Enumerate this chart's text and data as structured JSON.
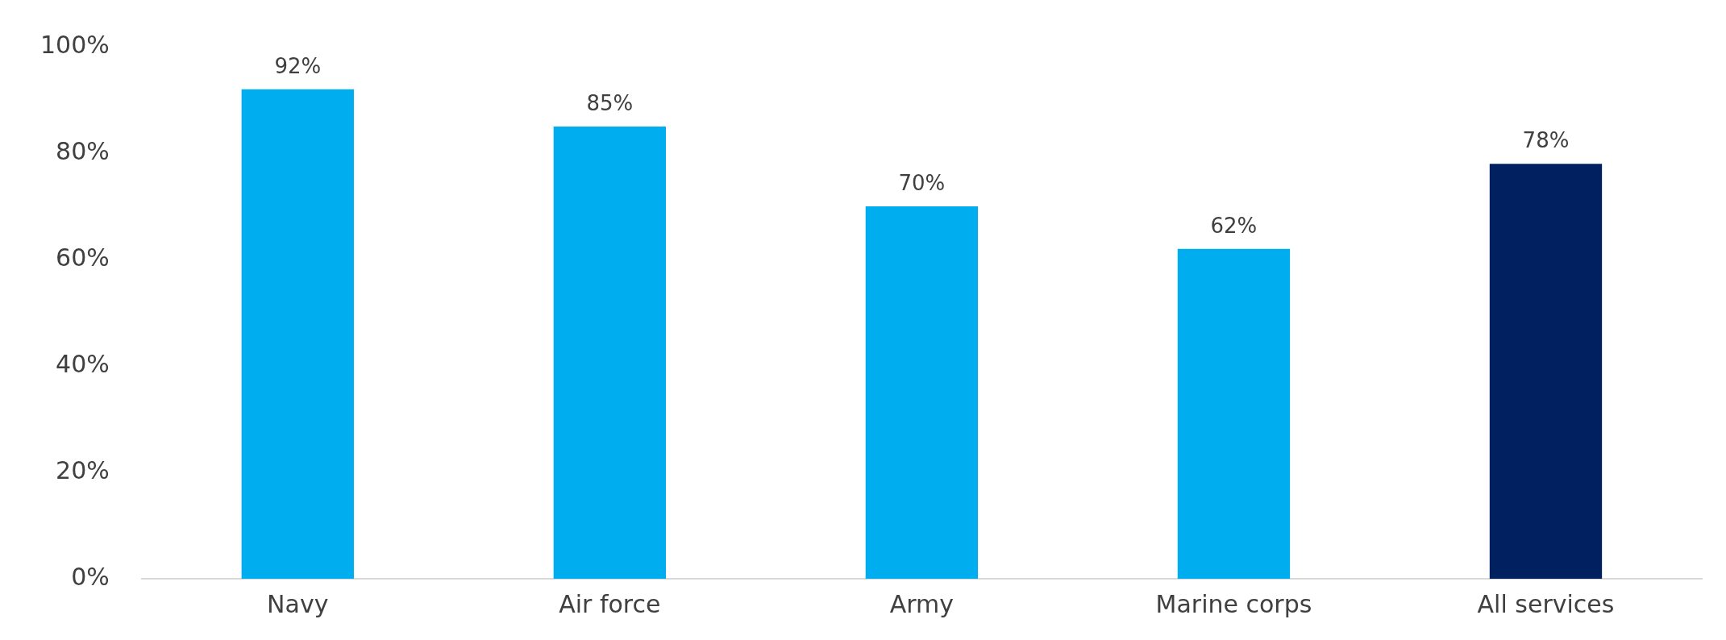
{
  "chart_data": {
    "type": "bar",
    "categories": [
      "Navy",
      "Air force",
      "Army",
      "Marine corps",
      "All services"
    ],
    "values": [
      92,
      85,
      70,
      62,
      78
    ],
    "colors": [
      "#00aeef",
      "#00aeef",
      "#00aeef",
      "#00aeef",
      "#002060"
    ],
    "value_labels": [
      "92%",
      "85%",
      "70%",
      "62%",
      "78%"
    ],
    "ylim": [
      0,
      100
    ],
    "yticks": [
      {
        "value": 0,
        "label": "0%"
      },
      {
        "value": 20,
        "label": "20%"
      },
      {
        "value": 40,
        "label": "40%"
      },
      {
        "value": 60,
        "label": "60%"
      },
      {
        "value": 80,
        "label": "80%"
      },
      {
        "value": 100,
        "label": "100%"
      }
    ],
    "grid": false,
    "legend": false
  }
}
